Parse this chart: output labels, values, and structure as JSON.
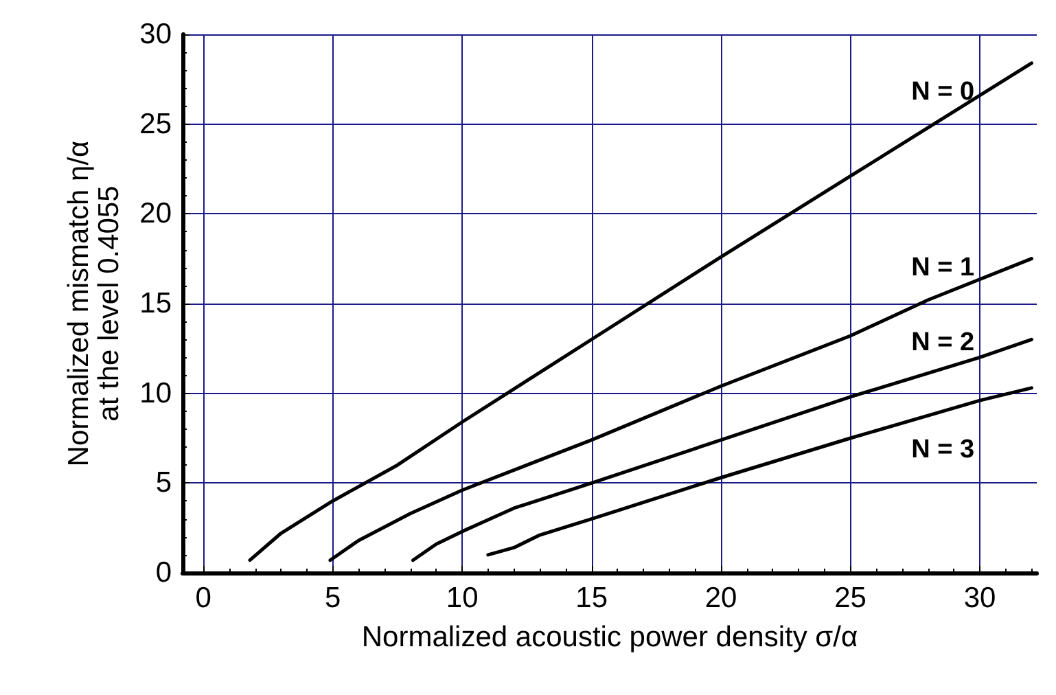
{
  "chart_data": {
    "type": "line",
    "xlabel": "Normalized acoustic power density σ/α",
    "ylabel": "Normalized mismatch η/α\nat the level 0.4055",
    "xlim": [
      -0.8,
      32.2
    ],
    "ylim": [
      0,
      30
    ],
    "xticks": [
      0,
      5,
      10,
      15,
      20,
      25,
      30
    ],
    "yticks": [
      0,
      5,
      10,
      15,
      20,
      25,
      30
    ],
    "grid": true,
    "line_style": "solid",
    "marker": "none",
    "series": [
      {
        "name": "N = 0",
        "color": "#000000",
        "x": [
          1.8,
          3,
          5,
          7.5,
          10,
          15,
          20,
          25,
          28,
          32
        ],
        "values": [
          0.7,
          2.2,
          4,
          6,
          8.4,
          13,
          17.6,
          22.1,
          24.8,
          28.4
        ]
      },
      {
        "name": "N = 1",
        "color": "#000000",
        "x": [
          4.9,
          6,
          8,
          10,
          15,
          20,
          25,
          28,
          32
        ],
        "values": [
          0.7,
          1.8,
          3.3,
          4.6,
          7.4,
          10.4,
          13.2,
          15.2,
          17.5
        ]
      },
      {
        "name": "N = 2",
        "color": "#000000",
        "x": [
          8.1,
          9,
          10,
          12,
          15,
          20,
          25,
          30,
          32
        ],
        "values": [
          0.7,
          1.6,
          2.3,
          3.6,
          5,
          7.4,
          9.8,
          12,
          13
        ]
      },
      {
        "name": "N = 3",
        "color": "#000000",
        "x": [
          11,
          12,
          13,
          15,
          20,
          25,
          30,
          32
        ],
        "values": [
          1,
          1.4,
          2.1,
          3,
          5.3,
          7.5,
          9.6,
          10.3
        ]
      }
    ]
  }
}
